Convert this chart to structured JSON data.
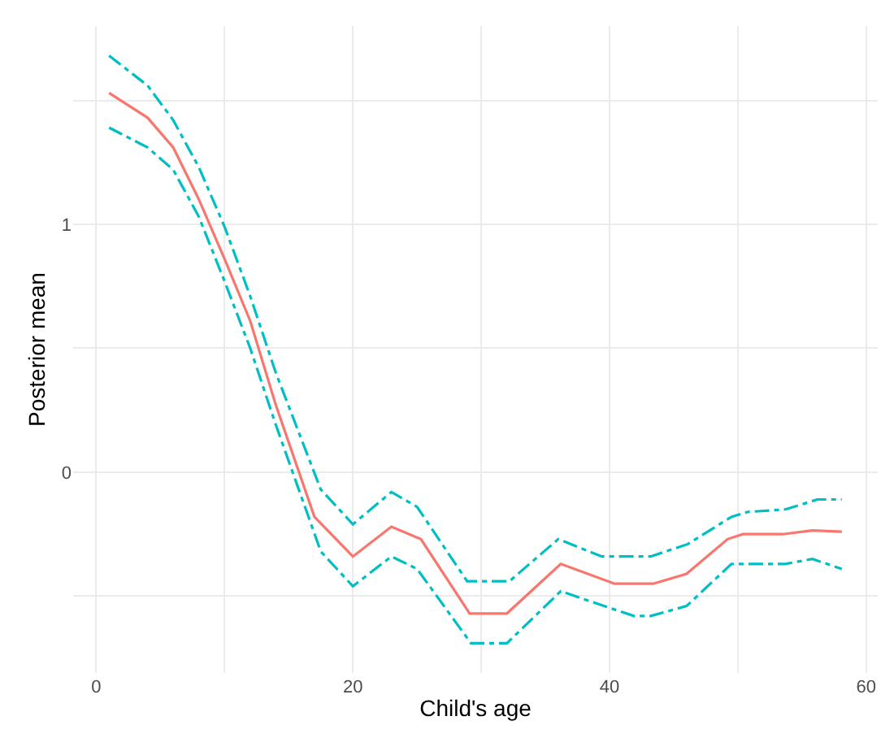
{
  "chart_data": {
    "type": "line",
    "xlabel": "Child's age",
    "ylabel": "Posterior mean",
    "xlim": [
      -1.8,
      60.9
    ],
    "ylim": [
      -0.81,
      1.8
    ],
    "xticks": [
      0,
      {
        "value": 10,
        "label": null
      },
      20,
      {
        "value": 30,
        "label": null
      },
      40,
      {
        "value": 50,
        "label": null
      },
      60
    ],
    "yticks": [
      {
        "value": -0.5,
        "label": null
      },
      0,
      {
        "value": 0.5,
        "label": null
      },
      1,
      {
        "value": 1.5,
        "label": null
      }
    ],
    "grid": true,
    "marker": "none",
    "series": [
      {
        "color": "#f8766d",
        "line_style": "solid",
        "x": [
          1,
          4,
          6,
          8,
          10,
          12,
          14,
          17,
          20,
          23,
          25.3,
          29.1,
          32,
          36.2,
          40.4,
          43.4,
          46,
          49.2,
          50.4,
          53.5,
          55.8,
          58.1
        ],
        "values": [
          1.53,
          1.43,
          1.31,
          1.1,
          0.86,
          0.61,
          0.27,
          -0.18,
          -0.34,
          -0.22,
          -0.27,
          -0.57,
          -0.57,
          -0.37,
          -0.45,
          -0.45,
          -0.41,
          -0.27,
          -0.25,
          -0.25,
          -0.235,
          -0.24
        ]
      },
      {
        "color": "#00bfc4",
        "line_style": "dashed",
        "x": [
          1,
          4,
          6,
          8,
          10,
          12,
          14,
          17.5,
          20,
          23,
          25,
          28.9,
          32.2,
          36,
          39.4,
          43.2,
          46.1,
          49.5,
          50.8,
          53.7,
          56.2,
          58.1
        ],
        "values": [
          1.68,
          1.56,
          1.42,
          1.23,
          0.99,
          0.71,
          0.4,
          -0.07,
          -0.21,
          -0.08,
          -0.14,
          -0.44,
          -0.44,
          -0.27,
          -0.34,
          -0.34,
          -0.29,
          -0.18,
          -0.16,
          -0.15,
          -0.11,
          -0.11
        ]
      },
      {
        "color": "#00bfc4",
        "line_style": "dashed",
        "x": [
          1,
          4,
          6,
          8,
          10,
          12,
          14,
          17.5,
          20,
          23,
          25,
          29.2,
          32,
          36.2,
          39,
          41.9,
          43.2,
          46,
          49.5,
          50.8,
          53.7,
          55.8,
          58.1
        ],
        "values": [
          1.39,
          1.31,
          1.22,
          1.03,
          0.77,
          0.5,
          0.19,
          -0.32,
          -0.46,
          -0.34,
          -0.39,
          -0.69,
          -0.69,
          -0.48,
          -0.53,
          -0.58,
          -0.58,
          -0.54,
          -0.37,
          -0.37,
          -0.37,
          -0.35,
          -0.39
        ]
      }
    ]
  }
}
